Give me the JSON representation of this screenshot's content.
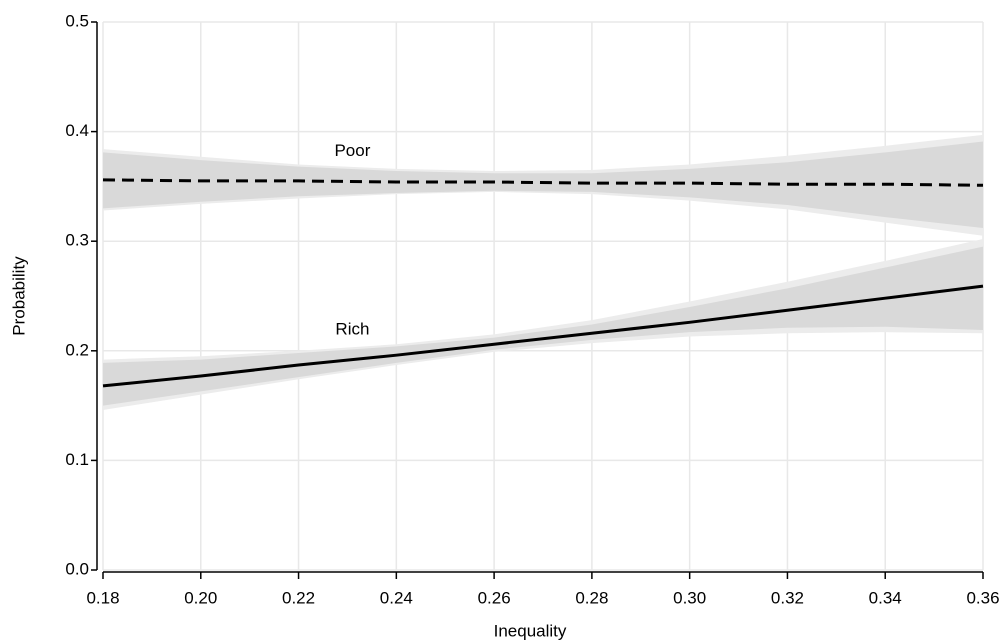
{
  "chart_data": {
    "type": "line",
    "xlabel": "Inequality",
    "ylabel": "Probability",
    "x": [
      0.18,
      0.2,
      0.22,
      0.24,
      0.26,
      0.28,
      0.3,
      0.32,
      0.34,
      0.36
    ],
    "xlim": [
      0.18,
      0.36
    ],
    "xticks": [
      0.18,
      {
        "value": 0.2,
        "label": "0.20"
      },
      0.22,
      0.24,
      0.26,
      0.28,
      {
        "value": 0.3,
        "label": "0.30"
      },
      0.32,
      0.34,
      0.36
    ],
    "ylim": [
      0,
      0.5
    ],
    "yticks": [
      {
        "value": 0,
        "label": "0.0"
      },
      0.1,
      0.2,
      0.3,
      0.4,
      0.5
    ],
    "grid": true,
    "band_colors": [
      "#ececec",
      "#d9d9d9"
    ],
    "series": [
      {
        "name": "Poor",
        "color": "#000000",
        "dashed": true,
        "values": [
          0.356,
          0.355,
          0.355,
          0.354,
          0.354,
          0.353,
          0.353,
          0.352,
          0.352,
          0.351
        ],
        "outer_lower": [
          0.328,
          0.334,
          0.339,
          0.343,
          0.345,
          0.343,
          0.337,
          0.329,
          0.317,
          0.305
        ],
        "outer_upper": [
          0.384,
          0.377,
          0.37,
          0.366,
          0.364,
          0.365,
          0.37,
          0.378,
          0.387,
          0.397
        ],
        "inner_lower": [
          0.33,
          0.336,
          0.341,
          0.344,
          0.346,
          0.345,
          0.34,
          0.333,
          0.322,
          0.312
        ],
        "inner_upper": [
          0.381,
          0.374,
          0.368,
          0.364,
          0.362,
          0.362,
          0.366,
          0.372,
          0.381,
          0.391
        ]
      },
      {
        "name": "Rich",
        "color": "#000000",
        "dashed": false,
        "values": [
          0.168,
          0.177,
          0.187,
          0.196,
          0.206,
          0.216,
          0.226,
          0.237,
          0.248,
          0.259
        ],
        "outer_lower": [
          0.146,
          0.16,
          0.174,
          0.187,
          0.199,
          0.207,
          0.213,
          0.216,
          0.217,
          0.216
        ],
        "outer_upper": [
          0.192,
          0.195,
          0.2,
          0.206,
          0.215,
          0.228,
          0.245,
          0.263,
          0.282,
          0.302
        ],
        "inner_lower": [
          0.15,
          0.163,
          0.176,
          0.189,
          0.201,
          0.21,
          0.217,
          0.221,
          0.222,
          0.219
        ],
        "inner_upper": [
          0.189,
          0.192,
          0.198,
          0.204,
          0.212,
          0.224,
          0.24,
          0.257,
          0.276,
          0.295
        ]
      }
    ]
  }
}
